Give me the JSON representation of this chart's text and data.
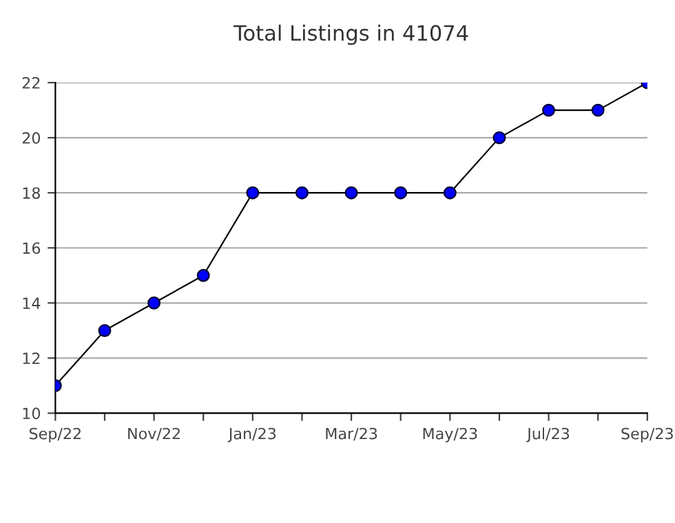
{
  "chart_data": {
    "type": "line",
    "title": "Total Listings in 41074",
    "categories": [
      "Sep/22",
      null,
      "Nov/22",
      null,
      "Jan/23",
      null,
      "Mar/23",
      null,
      "May/23",
      null,
      "Jul/23",
      null,
      "Sep/23"
    ],
    "series": [
      {
        "color": "#0000ff",
        "values": [
          11,
          13,
          14,
          15,
          18,
          18,
          18,
          18,
          18,
          20,
          21,
          21,
          22
        ]
      }
    ],
    "ylim": [
      10,
      22
    ],
    "yticks": [
      10,
      12,
      14,
      16,
      18,
      20,
      22
    ],
    "grid": "y",
    "marker": "circle",
    "line_style": "solid",
    "legend": false
  }
}
